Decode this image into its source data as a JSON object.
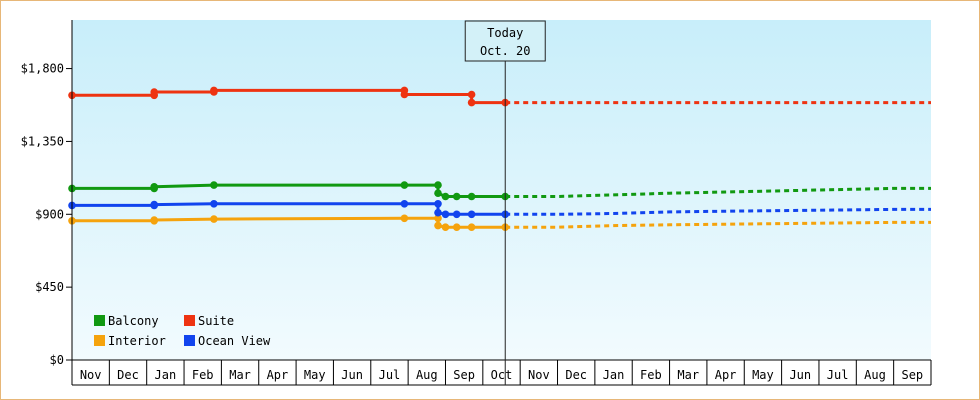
{
  "chart_data": {
    "type": "line",
    "title": "",
    "xlabel": "",
    "ylabel": "",
    "ylim": [
      0,
      2100
    ],
    "y_ticks": [
      0,
      450,
      900,
      1350,
      1800
    ],
    "y_tick_labels": [
      "$0",
      "$450",
      "$900",
      "$1,350",
      "$1,800"
    ],
    "x_range_months": [
      0,
      23
    ],
    "x_tick_labels": [
      "Nov",
      "Dec",
      "Jan",
      "Feb",
      "Mar",
      "Apr",
      "May",
      "Jun",
      "Jul",
      "Aug",
      "Sep",
      "Oct",
      "Nov",
      "Dec",
      "Jan",
      "Feb",
      "Mar",
      "Apr",
      "May",
      "Jun",
      "Jul",
      "Aug",
      "Sep"
    ],
    "grid": false,
    "legend_position": "bottom-left",
    "today_marker": {
      "line1": "Today",
      "line2": "Oct. 20",
      "x": 11.6
    },
    "series": [
      {
        "name": "Balcony",
        "color": "#119911",
        "x": [
          0.0,
          2.2,
          2.2,
          3.8,
          8.9,
          9.8,
          9.8,
          10.0,
          10.3,
          10.7,
          11.6
        ],
        "y": [
          1060,
          1060,
          1070,
          1080,
          1080,
          1080,
          1030,
          1010,
          1010,
          1010,
          1010
        ],
        "forecast_x": [
          11.6,
          13.0,
          14.5,
          16.0,
          18.0,
          20.0,
          22.0,
          23.0
        ],
        "forecast_y": [
          1010,
          1010,
          1020,
          1030,
          1040,
          1050,
          1060,
          1060
        ]
      },
      {
        "name": "Suite",
        "color": "#ee3311",
        "x": [
          0.0,
          2.2,
          2.2,
          3.8,
          3.8,
          8.9,
          8.9,
          10.7,
          10.7,
          11.6
        ],
        "y": [
          1635,
          1635,
          1655,
          1655,
          1665,
          1665,
          1640,
          1640,
          1590,
          1590
        ],
        "forecast_x": [
          11.6,
          23.0
        ],
        "forecast_y": [
          1590,
          1590
        ]
      },
      {
        "name": "Interior",
        "color": "#f5a30d",
        "x": [
          0.0,
          2.2,
          2.2,
          3.8,
          8.9,
          9.8,
          9.8,
          10.0,
          10.3,
          10.7,
          11.6
        ],
        "y": [
          860,
          860,
          865,
          870,
          875,
          875,
          830,
          820,
          820,
          820,
          820
        ],
        "forecast_x": [
          11.6,
          13.0,
          14.5,
          16.0,
          18.0,
          20.0,
          22.0,
          23.0
        ],
        "forecast_y": [
          820,
          820,
          830,
          835,
          840,
          845,
          850,
          850
        ]
      },
      {
        "name": "Ocean View",
        "color": "#1144ee",
        "x": [
          0.0,
          2.2,
          2.2,
          3.8,
          8.9,
          9.8,
          9.8,
          10.0,
          10.3,
          10.7,
          11.6
        ],
        "y": [
          955,
          955,
          960,
          965,
          965,
          965,
          910,
          900,
          900,
          900,
          900
        ],
        "forecast_x": [
          11.6,
          13.0,
          14.5,
          16.0,
          18.0,
          20.0,
          22.0,
          23.0
        ],
        "forecast_y": [
          900,
          900,
          905,
          915,
          920,
          925,
          930,
          930
        ]
      }
    ]
  }
}
